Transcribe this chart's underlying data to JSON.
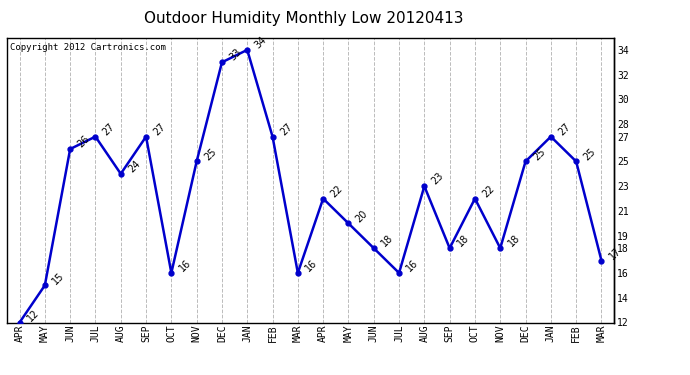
{
  "title": "Outdoor Humidity Monthly Low 20120413",
  "copyright_text": "Copyright 2012 Cartronics.com",
  "x_labels": [
    "APR",
    "MAY",
    "JUN",
    "JUL",
    "AUG",
    "SEP",
    "OCT",
    "NOV",
    "DEC",
    "JAN",
    "FEB",
    "MAR",
    "APR",
    "MAY",
    "JUN",
    "JUL",
    "AUG",
    "SEP",
    "OCT",
    "NOV",
    "DEC",
    "JAN",
    "FEB",
    "MAR"
  ],
  "values": [
    12,
    15,
    26,
    27,
    24,
    27,
    16,
    25,
    33,
    34,
    27,
    16,
    22,
    20,
    18,
    16,
    23,
    18,
    22,
    18,
    25,
    27,
    25,
    17
  ],
  "line_color": "#0000cc",
  "marker_color": "#0000cc",
  "background_color": "#ffffff",
  "plot_bg_color": "#ffffff",
  "grid_color": "#bbbbbb",
  "ylim_min": 12,
  "ylim_max": 35,
  "yticks": [
    12,
    14,
    16,
    18,
    19,
    21,
    23,
    25,
    27,
    28,
    30,
    32,
    34
  ],
  "title_fontsize": 11,
  "label_fontsize": 7,
  "annot_fontsize": 7,
  "copyright_fontsize": 6.5
}
